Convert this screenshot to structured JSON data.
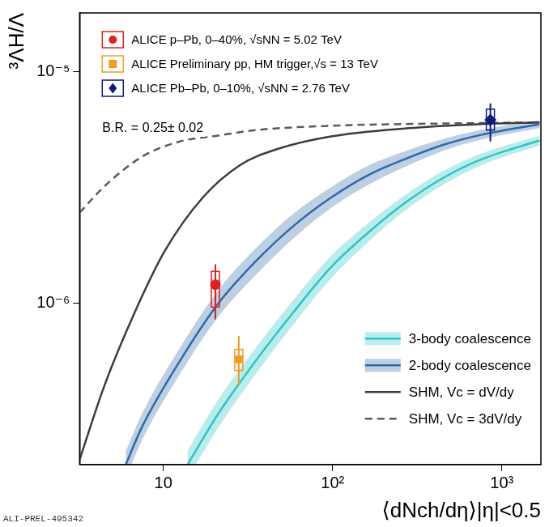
{
  "chart_data": {
    "type": "scatter",
    "x_label": "⟨dNch/dη⟩|η|<0.5",
    "y_label": "³ΛH/Λ",
    "annotations": [
      "B.R. = 0.25± 0.02",
      "ALI-PREL-495342"
    ],
    "log": true,
    "grid": false,
    "legend": "top-left",
    "xlim": [
      3.2,
      1700
    ],
    "xticks": [
      10,
      {
        "value": 100,
        "label": "10²"
      },
      {
        "value": 1000,
        "label": "10³"
      }
    ],
    "ylim": [
      2e-07,
      1.8e-05
    ],
    "yticks": [
      {
        "value": 1e-06,
        "label": "10⁻⁶"
      },
      {
        "value": 1e-05,
        "label": "10⁻⁵"
      }
    ],
    "series": [
      {
        "name": "ALICE p–Pb, 0–40%, √sNN = 5.02 TeV",
        "type": "scatter",
        "color": "#e0201b",
        "marker": "circle",
        "x": [
          20.3
        ],
        "values": [
          1.2e-06
        ],
        "stat_low": [
          8.5e-07
        ],
        "stat_high": [
          1.47e-06
        ],
        "syst_low": [
          9.6e-07
        ],
        "syst_high": [
          1.37e-06
        ]
      },
      {
        "name": "ALICE Preliminary pp, HM trigger,√s = 13 TeV",
        "type": "scatter",
        "color": "#f39c1f",
        "marker": "square",
        "x": [
          27.9
        ],
        "values": [
          5.7e-07
        ],
        "stat_low": [
          4.4e-07
        ],
        "stat_high": [
          7.2e-07
        ],
        "syst_low": [
          5.1e-07
        ],
        "syst_high": [
          6.3e-07
        ]
      },
      {
        "name": "ALICE Pb–Pb, 0–10%, √sNN = 2.76 TeV",
        "type": "scatter",
        "color": "#0d1a7a",
        "marker": "diamond",
        "x": [
          855
        ],
        "values": [
          6.2e-06
        ],
        "stat_low": [
          5e-06
        ],
        "stat_high": [
          7.3e-06
        ],
        "syst_low": [
          5.6e-06
        ],
        "syst_high": [
          6.9e-06
        ]
      },
      {
        "name": "3-body coalescence",
        "type": "line",
        "color": "#2cc5c5",
        "line_style": "solid",
        "x": [
          13.9,
          21,
          35,
          58.5,
          98,
          164,
          273,
          457,
          760,
          1670
        ],
        "values": [
          2e-07,
          3.3e-07,
          5.6e-07,
          9.1e-07,
          1.43e-06,
          2.03e-06,
          2.74e-06,
          3.5e-06,
          4.19e-06,
          5.05e-06
        ],
        "band_low": [
          1.74e-07,
          2.87e-07,
          4.91e-07,
          8.05e-07,
          1.28e-06,
          1.85e-06,
          2.54e-06,
          3.27e-06,
          3.95e-06,
          4.81e-06
        ],
        "band_high": [
          2.3e-07,
          3.8e-07,
          6.38e-07,
          1.03e-06,
          1.6e-06,
          2.23e-06,
          2.96e-06,
          3.75e-06,
          4.44e-06,
          5.3e-06
        ]
      },
      {
        "name": "2-body coalescence",
        "type": "line",
        "color": "#2e6aa8",
        "line_style": "solid",
        "x": [
          6.0,
          7.5,
          12.5,
          21,
          35,
          58.5,
          98,
          164,
          273,
          457,
          760,
          1670
        ],
        "values": [
          2e-07,
          2.92e-07,
          5.6e-07,
          9.9e-07,
          1.51e-06,
          2.15e-06,
          2.86e-06,
          3.59e-06,
          4.22e-06,
          4.85e-06,
          5.35e-06,
          5.94e-06
        ],
        "band_low": [
          1.75e-07,
          2.56e-07,
          4.91e-07,
          8.68e-07,
          1.32e-06,
          1.9e-06,
          2.58e-06,
          3.26e-06,
          3.91e-06,
          4.58e-06,
          5.1e-06,
          5.71e-06
        ],
        "band_high": [
          2.28e-07,
          3.33e-07,
          6.38e-07,
          1.13e-06,
          1.72e-06,
          2.43e-06,
          3.17e-06,
          3.95e-06,
          4.56e-06,
          5.14e-06,
          5.62e-06,
          6.18e-06
        ]
      },
      {
        "name": "SHM, Vc = dV/dy",
        "type": "line",
        "color": "#3c3c3c",
        "line_style": "solid",
        "x": [
          3.2,
          4.49,
          6.77,
          10.2,
          17.1,
          28.5,
          47.7,
          97.9,
          273,
          760,
          1670
        ],
        "values": [
          2.1e-07,
          4.4e-07,
          9.1e-07,
          1.68e-06,
          2.86e-06,
          3.96e-06,
          4.65e-06,
          5.26e-06,
          5.7e-06,
          5.95e-06,
          6.05e-06
        ]
      },
      {
        "name": "SHM, Vc = 3dV/dy",
        "type": "line",
        "color": "#5a5a5a",
        "line_style": "dashed",
        "x": [
          3.2,
          4.49,
          7.5,
          12.5,
          21,
          35,
          97.9,
          273,
          1670
        ],
        "values": [
          2.46e-06,
          3.2e-06,
          4.3e-06,
          5e-06,
          5.3e-06,
          5.6e-06,
          5.85e-06,
          5.95e-06,
          6.05e-06
        ]
      }
    ]
  }
}
